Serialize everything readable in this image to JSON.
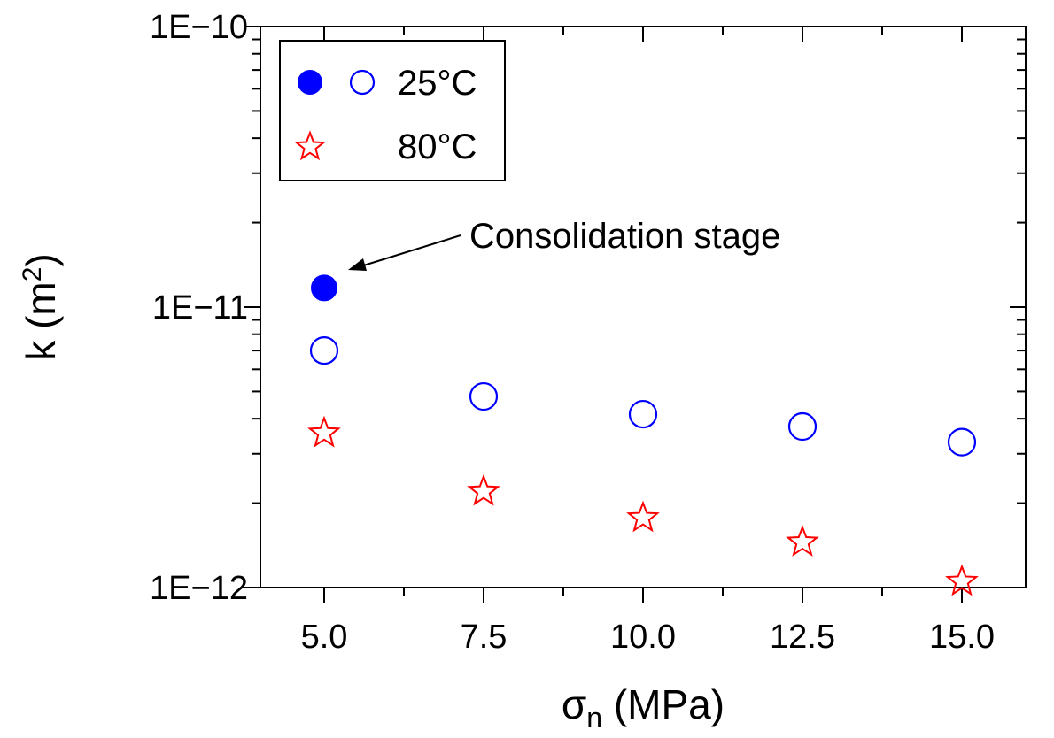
{
  "chart_data": {
    "type": "scatter",
    "title": "",
    "xlabel": {
      "symbol": "σ",
      "subscript": "n",
      "unit": "(MPa)"
    },
    "ylabel": {
      "base": "k (m",
      "superscript": "2",
      "close": ")"
    },
    "xlim": [
      4.0,
      16.0
    ],
    "ylim": [
      1e-12,
      1e-10
    ],
    "yscale": "log",
    "grid": false,
    "x_ticks": [
      5.0,
      7.5,
      10.0,
      12.5,
      15.0
    ],
    "x_tick_labels": [
      "5.0",
      "7.5",
      "10.0",
      "12.5",
      "15.0"
    ],
    "y_tick_labels": [
      "1E−10",
      "1E−11",
      "1E−12"
    ],
    "y_ticks": [
      1e-10,
      1e-11,
      1e-12
    ],
    "legend_position": "top-left",
    "series": [
      {
        "name": "25°C consolidation",
        "marker": "filled-circle",
        "color": "#0000ff",
        "x": [
          5.0
        ],
        "y": [
          1.17e-11
        ]
      },
      {
        "name": "25°C",
        "marker": "open-circle",
        "color": "#0000ff",
        "x": [
          5.0,
          7.5,
          10.0,
          12.5,
          15.0
        ],
        "y": [
          7e-12,
          4.8e-12,
          4.15e-12,
          3.75e-12,
          3.3e-12
        ]
      },
      {
        "name": "80°C",
        "marker": "open-star",
        "color": "#ff0000",
        "x": [
          5.0,
          7.5,
          10.0,
          12.5,
          15.0
        ],
        "y": [
          3.55e-12,
          2.2e-12,
          1.77e-12,
          1.45e-12,
          1.05e-12
        ]
      }
    ],
    "legend": [
      {
        "label": "25°C",
        "markers": [
          "filled-circle",
          "open-circle"
        ],
        "color": "#0000ff"
      },
      {
        "label": "80°C",
        "markers": [
          "open-star"
        ],
        "color": "#ff0000"
      }
    ],
    "annotation": {
      "text": "Consolidation stage",
      "points_to": {
        "x": 5.0,
        "y": 1.17e-11
      }
    }
  }
}
